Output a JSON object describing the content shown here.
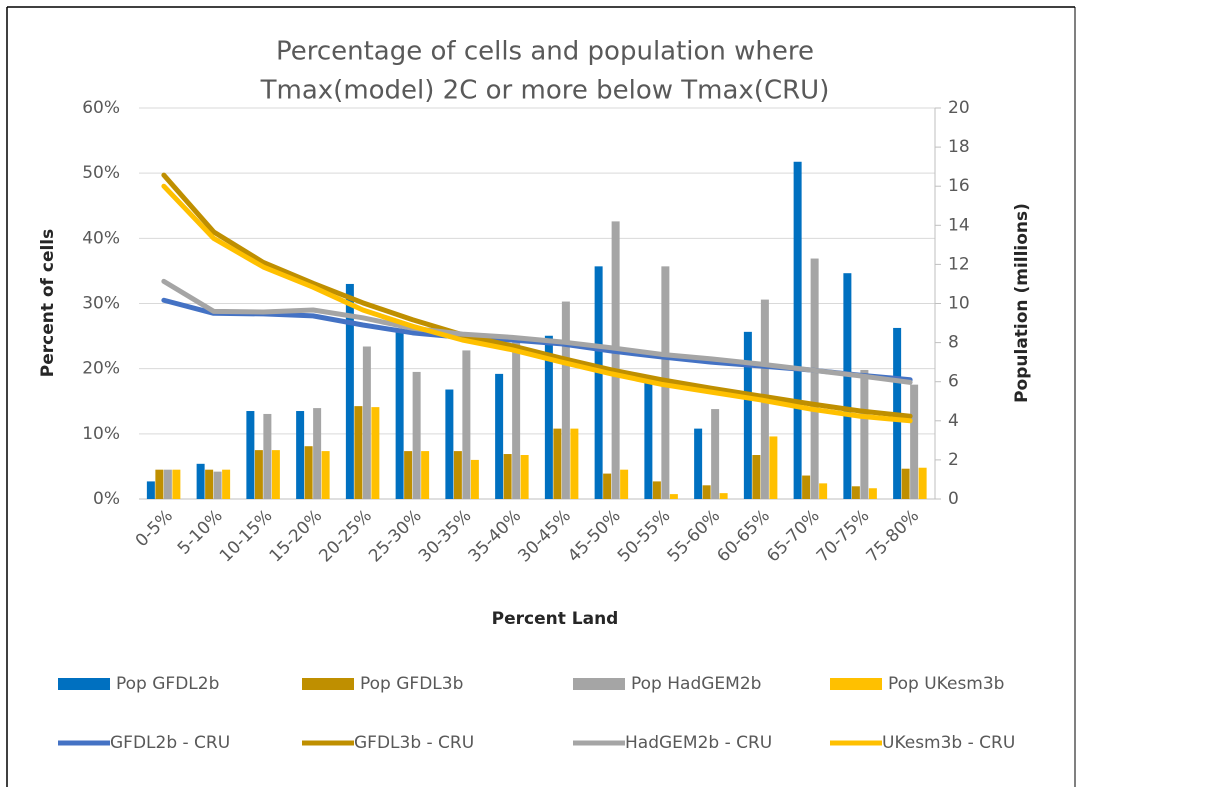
{
  "chart_data": {
    "type": "bar",
    "title": [
      "Percentage of cells and population where",
      "Tmax(model) 2C or more below Tmax(CRU)"
    ],
    "x_label": "Percent Land",
    "y_label": "Percent of cells",
    "y2_label": "Population (millions)",
    "categories": [
      "0-5%",
      "5-10%",
      "10-15%",
      "15-20%",
      "20-25%",
      "25-30%",
      "30-35%",
      "35-40%",
      "30-45%",
      "45-50%",
      "50-55%",
      "55-60%",
      "60-65%",
      "65-70%",
      "70-75%",
      "75-80%"
    ],
    "ylim": [
      0,
      60
    ],
    "yticks": [
      {
        "value": 0,
        "label": "0%"
      },
      {
        "value": 10,
        "label": "10%"
      },
      {
        "value": 20,
        "label": "20%"
      },
      {
        "value": 30,
        "label": "30%"
      },
      {
        "value": 40,
        "label": "40%"
      },
      {
        "value": 50,
        "label": "50%"
      },
      {
        "value": 60,
        "label": "60%"
      }
    ],
    "y2lim": [
      0,
      20
    ],
    "y2ticks": [
      0,
      2,
      4,
      6,
      8,
      10,
      12,
      14,
      16,
      18,
      20
    ],
    "grid": true,
    "legend": "bottom",
    "series": [
      {
        "name": "Pop GFDL2b",
        "type": "bar",
        "axis": "y2",
        "color": "#0070c0",
        "values": [
          0.9,
          1.8,
          4.5,
          4.5,
          11.0,
          8.7,
          5.6,
          6.4,
          8.35,
          11.9,
          6.0,
          3.6,
          8.55,
          17.25,
          11.55,
          8.75
        ]
      },
      {
        "name": "Pop GFDL3b",
        "type": "bar",
        "axis": "y2",
        "color": "#bf8f00",
        "values": [
          1.5,
          1.5,
          2.5,
          2.7,
          4.75,
          2.45,
          2.45,
          2.3,
          3.6,
          1.3,
          0.9,
          0.7,
          2.25,
          1.2,
          0.65,
          1.55
        ]
      },
      {
        "name": "Pop HadGEM2b",
        "type": "bar",
        "axis": "y2",
        "color": "#a5a5a5",
        "values": [
          1.5,
          1.4,
          4.35,
          4.65,
          7.8,
          6.5,
          7.6,
          8.0,
          10.1,
          14.2,
          11.9,
          4.6,
          10.2,
          12.3,
          6.6,
          5.85
        ]
      },
      {
        "name": "Pop UKesm3b",
        "type": "bar",
        "axis": "y2",
        "color": "#ffc000",
        "values": [
          1.5,
          1.5,
          2.5,
          2.45,
          4.7,
          2.45,
          2.0,
          2.25,
          3.6,
          1.5,
          0.25,
          0.3,
          3.2,
          0.8,
          0.55,
          1.6
        ]
      },
      {
        "name": "GFDL2b - CRU",
        "type": "line",
        "color": "#4472c4",
        "values": [
          30.5,
          28.5,
          28.4,
          28.1,
          26.7,
          25.5,
          24.8,
          24.4,
          23.8,
          22.7,
          21.8,
          21.0,
          20.4,
          19.8,
          19.0,
          18.3
        ]
      },
      {
        "name": "GFDL3b - CRU",
        "type": "line",
        "color": "#bf8f00",
        "values": [
          49.7,
          41.0,
          36.3,
          33.1,
          30.1,
          27.5,
          25.2,
          23.5,
          21.6,
          19.8,
          18.3,
          17.0,
          15.8,
          14.6,
          13.5,
          12.7
        ]
      },
      {
        "name": "HadGEM2b - CRU",
        "type": "line",
        "color": "#a5a5a5",
        "values": [
          33.4,
          28.8,
          28.7,
          29.0,
          27.8,
          26.2,
          25.3,
          24.8,
          24.1,
          23.2,
          22.2,
          21.5,
          20.7,
          19.8,
          18.9,
          17.9
        ]
      },
      {
        "name": "UKesm3b - CRU",
        "type": "line",
        "color": "#ffc000",
        "values": [
          48.0,
          40.0,
          35.6,
          32.5,
          29.0,
          26.5,
          24.4,
          22.9,
          21.0,
          19.2,
          17.6,
          16.4,
          15.2,
          13.8,
          12.7,
          12.0
        ]
      }
    ]
  }
}
